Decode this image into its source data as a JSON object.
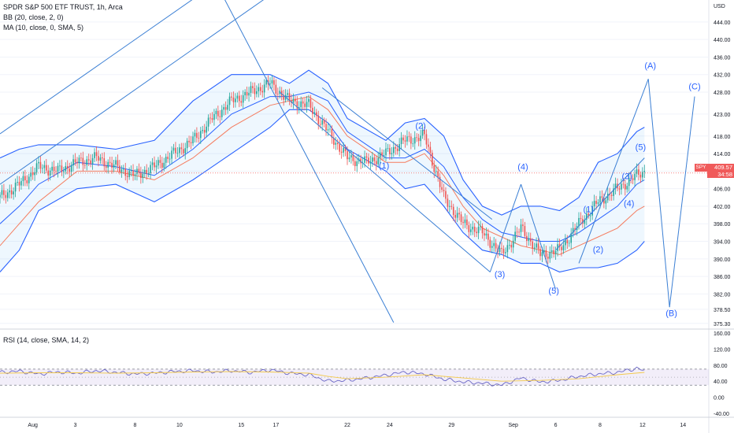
{
  "legend": {
    "main": "SPDR S&P 500 ETF TRUST, 1h, Arca",
    "bb": "BB (20, close, 2, 0)",
    "ma": "MA (10, close, 0, SMA, 5)",
    "rsi": "RSI (14, close, SMA, 14, 2)"
  },
  "price_tag": {
    "ticker": "SPY",
    "price": "409.57",
    "countdown": "34:58"
  },
  "colors": {
    "up": "#26a69a",
    "down": "#ef5350",
    "band": "#2962ff",
    "band_fill": "#2196f3",
    "ma": "#f57c5f",
    "rsi_line": "#6a66c6",
    "rsi_ma": "#f2c94c",
    "tag": "#f05a5a",
    "grid": "#f0f3fa",
    "axis_text": "#131722"
  },
  "chart_data": [
    {
      "type": "candlestick",
      "title": "SPDR S&P 500 ETF TRUST, 1h, Arca",
      "unit": "USD",
      "yticks": [
        375.3,
        378.5,
        382.0,
        386.0,
        390.0,
        394.0,
        398.0,
        402.0,
        406.0,
        410.0,
        414.0,
        418.0,
        423.0,
        428.0,
        432.0,
        436.0,
        440.0,
        444.0
      ],
      "ytick_labels": [
        "375.30",
        "378.50",
        "382.00",
        "386.00",
        "390.00",
        "394.00",
        "398.00",
        "402.00",
        "406.00",
        "410.00",
        "414.00",
        "418.00",
        "423.00",
        "428.00",
        "432.00",
        "436.00",
        "440.00",
        "444.00"
      ],
      "ylim": [
        374.0,
        449.0
      ],
      "x_labels": [
        "Aug",
        "3",
        "8",
        "10",
        "15",
        "17",
        "22",
        "24",
        "29",
        "Sep",
        "6",
        "8",
        "12",
        "14"
      ],
      "price_trend": [
        [
          0,
          404
        ],
        [
          10,
          407
        ],
        [
          20,
          411
        ],
        [
          30,
          410
        ],
        [
          40,
          412
        ],
        [
          50,
          413
        ],
        [
          60,
          411
        ],
        [
          70,
          409
        ],
        [
          80,
          411
        ],
        [
          90,
          414
        ],
        [
          100,
          417
        ],
        [
          110,
          422
        ],
        [
          120,
          426
        ],
        [
          130,
          428
        ],
        [
          140,
          430
        ],
        [
          150,
          426
        ],
        [
          160,
          425
        ],
        [
          170,
          419
        ],
        [
          180,
          413
        ],
        [
          190,
          412
        ],
        [
          200,
          414
        ],
        [
          210,
          417
        ],
        [
          220,
          418
        ],
        [
          230,
          404
        ],
        [
          240,
          398
        ],
        [
          250,
          396
        ],
        [
          260,
          391
        ],
        [
          270,
          397
        ],
        [
          280,
          391
        ],
        [
          290,
          392
        ],
        [
          300,
          398
        ],
        [
          310,
          403
        ],
        [
          320,
          406
        ],
        [
          330,
          409
        ],
        [
          334,
          410
        ]
      ],
      "bb_upper": [
        [
          0,
          413
        ],
        [
          10,
          415
        ],
        [
          20,
          416
        ],
        [
          40,
          416
        ],
        [
          60,
          415
        ],
        [
          80,
          417
        ],
        [
          100,
          426
        ],
        [
          120,
          432
        ],
        [
          140,
          432
        ],
        [
          150,
          430
        ],
        [
          160,
          433
        ],
        [
          170,
          430
        ],
        [
          180,
          422
        ],
        [
          200,
          417
        ],
        [
          210,
          421
        ],
        [
          220,
          422
        ],
        [
          230,
          418
        ],
        [
          240,
          408
        ],
        [
          250,
          402
        ],
        [
          260,
          400
        ],
        [
          270,
          402
        ],
        [
          280,
          402
        ],
        [
          290,
          401
        ],
        [
          300,
          404
        ],
        [
          310,
          412
        ],
        [
          320,
          414
        ],
        [
          330,
          419
        ],
        [
          334,
          420
        ]
      ],
      "bb_middle": [
        [
          0,
          398
        ],
        [
          10,
          402
        ],
        [
          20,
          407
        ],
        [
          40,
          412
        ],
        [
          60,
          411
        ],
        [
          80,
          409
        ],
        [
          100,
          415
        ],
        [
          120,
          423
        ],
        [
          140,
          427
        ],
        [
          150,
          427
        ],
        [
          160,
          428
        ],
        [
          170,
          426
        ],
        [
          180,
          419
        ],
        [
          200,
          413
        ],
        [
          210,
          413
        ],
        [
          220,
          415
        ],
        [
          230,
          411
        ],
        [
          240,
          404
        ],
        [
          250,
          399
        ],
        [
          260,
          396
        ],
        [
          270,
          395
        ],
        [
          280,
          394
        ],
        [
          290,
          394
        ],
        [
          300,
          396
        ],
        [
          310,
          399
        ],
        [
          320,
          402
        ],
        [
          330,
          407
        ],
        [
          334,
          408
        ]
      ],
      "bb_lower": [
        [
          0,
          387
        ],
        [
          10,
          392
        ],
        [
          20,
          401
        ],
        [
          40,
          406
        ],
        [
          60,
          407
        ],
        [
          80,
          403
        ],
        [
          100,
          408
        ],
        [
          120,
          414
        ],
        [
          140,
          420
        ],
        [
          150,
          424
        ],
        [
          160,
          424
        ],
        [
          170,
          421
        ],
        [
          180,
          415
        ],
        [
          200,
          410
        ],
        [
          210,
          406
        ],
        [
          220,
          407
        ],
        [
          230,
          402
        ],
        [
          240,
          396
        ],
        [
          250,
          392
        ],
        [
          260,
          391
        ],
        [
          270,
          389
        ],
        [
          280,
          389
        ],
        [
          290,
          387
        ],
        [
          300,
          388
        ],
        [
          310,
          388
        ],
        [
          320,
          389
        ],
        [
          330,
          392
        ],
        [
          334,
          394
        ]
      ],
      "ma": [
        [
          0,
          393
        ],
        [
          10,
          398
        ],
        [
          20,
          403
        ],
        [
          40,
          410
        ],
        [
          60,
          410
        ],
        [
          80,
          408
        ],
        [
          100,
          413
        ],
        [
          120,
          420
        ],
        [
          140,
          425
        ],
        [
          150,
          426
        ],
        [
          160,
          427
        ],
        [
          170,
          424
        ],
        [
          180,
          418
        ],
        [
          200,
          412
        ],
        [
          210,
          412
        ],
        [
          220,
          414
        ],
        [
          230,
          409
        ],
        [
          240,
          402
        ],
        [
          250,
          397
        ],
        [
          260,
          395
        ],
        [
          270,
          393
        ],
        [
          280,
          392
        ],
        [
          290,
          391
        ],
        [
          300,
          393
        ],
        [
          310,
          395
        ],
        [
          320,
          397
        ],
        [
          330,
          401
        ],
        [
          334,
          402
        ]
      ],
      "trendlines": [
        [
          [
            0,
            418.5
          ],
          [
            101,
            449.5
          ]
        ],
        [
          [
            0,
            407
          ],
          [
            138,
            449.5
          ]
        ],
        [
          [
            116,
            449.5
          ],
          [
            204,
            375.5
          ]
        ],
        [
          [
            145,
            428
          ],
          [
            254,
            387
          ]
        ],
        [
          [
            167,
            429
          ],
          [
            255,
            399
          ]
        ],
        [
          [
            254,
            387
          ],
          [
            270,
            407
          ]
        ],
        [
          [
            270,
            407
          ],
          [
            288,
            383
          ]
        ],
        [
          [
            288,
            392
          ],
          [
            334,
            413
          ]
        ],
        [
          [
            300,
            389
          ],
          [
            336,
            431
          ]
        ],
        [
          [
            336,
            431
          ],
          [
            347,
            379
          ]
        ],
        [
          [
            347,
            379
          ],
          [
            360,
            427
          ]
        ]
      ],
      "wave_labels": [
        {
          "text": "(1)",
          "x": 199,
          "y": 410.6
        },
        {
          "text": "(2)",
          "x": 218,
          "y": 419.7
        },
        {
          "text": "(4)",
          "x": 271,
          "y": 410.3
        },
        {
          "text": "(3)",
          "x": 259,
          "y": 385.8
        },
        {
          "text": "(5)",
          "x": 287,
          "y": 382.1
        },
        {
          "text": "(1)",
          "x": 305,
          "y": 400.6
        },
        {
          "text": "(2)",
          "x": 310,
          "y": 391.5
        },
        {
          "text": "(4)",
          "x": 326,
          "y": 402.0
        },
        {
          "text": "(3)",
          "x": 325,
          "y": 408.2
        },
        {
          "text": "(5)",
          "x": 332,
          "y": 414.8
        },
        {
          "text": "(A)",
          "x": 337,
          "y": 433.4
        },
        {
          "text": "(B)",
          "x": 348,
          "y": 377.0
        },
        {
          "text": "(C)",
          "x": 360,
          "y": 428.6
        }
      ]
    },
    {
      "type": "line",
      "title": "RSI (14, close, SMA, 14, 2)",
      "yticks": [
        160,
        120,
        80,
        40,
        0,
        -40
      ],
      "ytick_labels": [
        "160.00",
        "120.00",
        "80.00",
        "40.00",
        "0.00",
        "-40.00"
      ],
      "ylim": [
        -50,
        170
      ],
      "band": [
        30,
        70
      ],
      "rsi": [
        [
          0,
          62
        ],
        [
          10,
          65
        ],
        [
          20,
          58
        ],
        [
          30,
          63
        ],
        [
          40,
          60
        ],
        [
          50,
          66
        ],
        [
          60,
          62
        ],
        [
          70,
          58
        ],
        [
          80,
          60
        ],
        [
          90,
          64
        ],
        [
          100,
          66
        ],
        [
          110,
          63
        ],
        [
          120,
          66
        ],
        [
          130,
          62
        ],
        [
          140,
          68
        ],
        [
          150,
          60
        ],
        [
          160,
          56
        ],
        [
          170,
          40
        ],
        [
          180,
          42
        ],
        [
          190,
          48
        ],
        [
          200,
          55
        ],
        [
          210,
          63
        ],
        [
          220,
          58
        ],
        [
          230,
          45
        ],
        [
          240,
          38
        ],
        [
          250,
          35
        ],
        [
          260,
          30
        ],
        [
          270,
          48
        ],
        [
          280,
          38
        ],
        [
          290,
          42
        ],
        [
          300,
          52
        ],
        [
          310,
          58
        ],
        [
          320,
          62
        ],
        [
          330,
          72
        ],
        [
          334,
          66
        ]
      ],
      "rsi_ma": [
        [
          0,
          60
        ],
        [
          20,
          61
        ],
        [
          40,
          61
        ],
        [
          60,
          60
        ],
        [
          80,
          61
        ],
        [
          100,
          63
        ],
        [
          120,
          64
        ],
        [
          140,
          63
        ],
        [
          160,
          60
        ],
        [
          170,
          52
        ],
        [
          180,
          46
        ],
        [
          200,
          50
        ],
        [
          220,
          56
        ],
        [
          240,
          48
        ],
        [
          260,
          40
        ],
        [
          280,
          42
        ],
        [
          300,
          46
        ],
        [
          320,
          56
        ],
        [
          334,
          62
        ]
      ]
    }
  ]
}
